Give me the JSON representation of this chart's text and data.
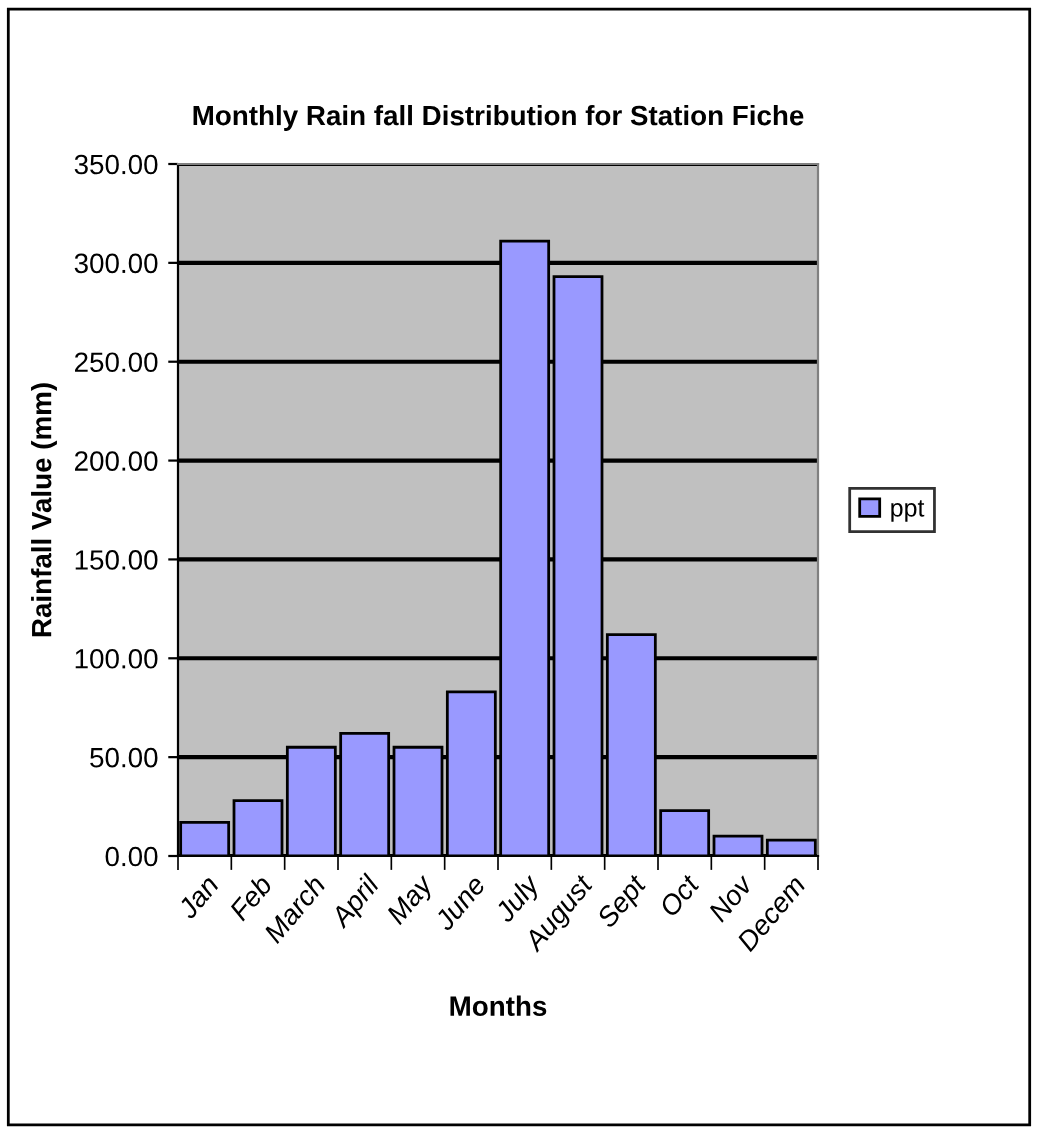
{
  "chart_data": {
    "type": "bar",
    "title": "Monthly Rain fall Distribution for Station Fiche",
    "xlabel": "Months",
    "ylabel": "Rainfall Value (mm)",
    "categories": [
      "Jan",
      "Feb",
      "March",
      "April",
      "May",
      "June",
      "July",
      "August",
      "Sept",
      "Oct",
      "Nov",
      "Decem"
    ],
    "series": [
      {
        "name": "ppt",
        "color": "#9999ff",
        "values": [
          17,
          28,
          55,
          62,
          55,
          83,
          311,
          293,
          112,
          23,
          10,
          8
        ]
      }
    ],
    "ylim": [
      0,
      350
    ],
    "yticks": [
      {
        "value": 0,
        "label": "0.00"
      },
      {
        "value": 50,
        "label": "50.00"
      },
      {
        "value": 100,
        "label": "100.00"
      },
      {
        "value": 150,
        "label": "150.00"
      },
      {
        "value": 200,
        "label": "200.00"
      },
      {
        "value": 250,
        "label": "250.00"
      },
      {
        "value": 300,
        "label": "300.00"
      },
      {
        "value": 350,
        "label": "350.00"
      }
    ],
    "grid": "y",
    "legend": "right"
  }
}
